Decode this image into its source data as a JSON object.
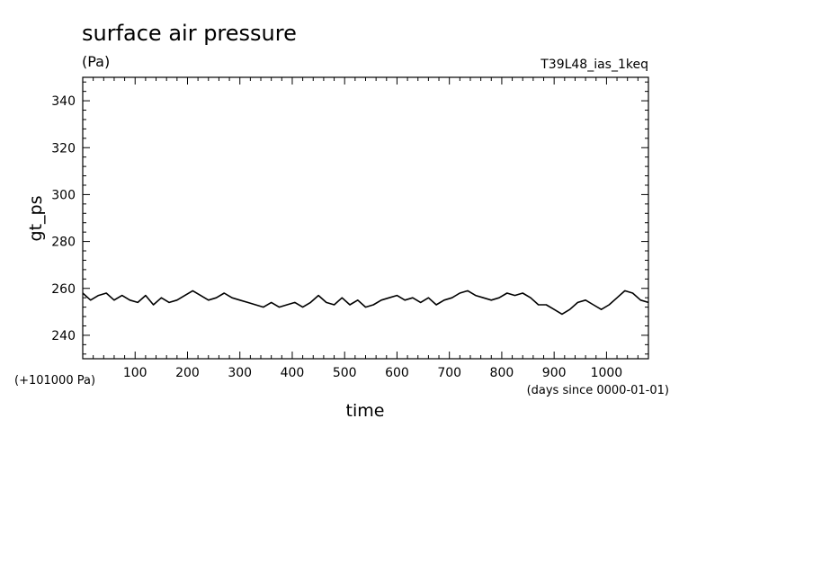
{
  "chart_data": {
    "type": "line",
    "title": "surface air pressure",
    "units_label": "(Pa)",
    "run_label": "T39L48_ias_1keq",
    "xlabel": "time",
    "ylabel": "gt_ps",
    "x_units_note": "(days since 0000-01-01)",
    "y_offset_note": "(+101000 Pa)",
    "xlim": [
      0,
      1080
    ],
    "ylim": [
      230,
      350
    ],
    "x_ticks": [
      "100",
      "200",
      "300",
      "400",
      "500",
      "600",
      "700",
      "800",
      "900",
      "1000"
    ],
    "y_ticks": [
      "240",
      "260",
      "280",
      "300",
      "320",
      "340"
    ],
    "series": [
      {
        "color": "#000000",
        "x": [
          0,
          15,
          30,
          45,
          60,
          75,
          90,
          105,
          120,
          135,
          150,
          165,
          180,
          195,
          210,
          225,
          240,
          255,
          270,
          285,
          300,
          315,
          330,
          345,
          360,
          375,
          390,
          405,
          420,
          435,
          450,
          465,
          480,
          495,
          510,
          525,
          540,
          555,
          570,
          585,
          600,
          615,
          630,
          645,
          660,
          675,
          690,
          705,
          720,
          735,
          750,
          765,
          780,
          795,
          810,
          825,
          840,
          855,
          870,
          885,
          900,
          915,
          930,
          945,
          960,
          975,
          990,
          1005,
          1020,
          1035,
          1050,
          1065,
          1080
        ],
        "y": [
          258,
          255,
          257,
          258,
          255,
          257,
          255,
          254,
          257,
          253,
          256,
          254,
          255,
          257,
          259,
          257,
          255,
          256,
          258,
          256,
          255,
          254,
          253,
          252,
          254,
          252,
          253,
          254,
          252,
          254,
          257,
          254,
          253,
          256,
          253,
          255,
          252,
          253,
          255,
          256,
          257,
          255,
          256,
          254,
          256,
          253,
          255,
          256,
          258,
          259,
          257,
          256,
          255,
          256,
          258,
          257,
          258,
          256,
          253,
          253,
          251,
          249,
          251,
          254,
          255,
          253,
          251,
          253,
          256,
          259,
          258,
          255,
          254
        ]
      }
    ]
  }
}
